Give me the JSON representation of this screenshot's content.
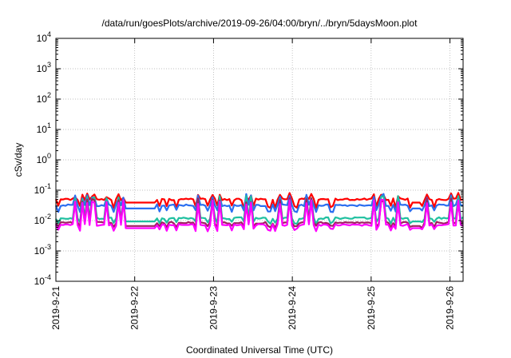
{
  "chart_data": {
    "type": "line",
    "title": "/data/run/goesPlots/archive/2019-09-26/04:00/bryn/../bryn/5daysMoon.plot",
    "xlabel": "Coordinated Universal Time (UTC)",
    "ylabel": "cSv/day",
    "y_scale": "log",
    "ylim": [
      0.0001,
      10000
    ],
    "y_ticks": [
      {
        "value": 0.0001,
        "base": "10",
        "exp": "-4"
      },
      {
        "value": 0.001,
        "base": "10",
        "exp": "-3"
      },
      {
        "value": 0.01,
        "base": "10",
        "exp": "-2"
      },
      {
        "value": 0.1,
        "base": "10",
        "exp": "-1"
      },
      {
        "value": 1,
        "base": "10",
        "exp": "0"
      },
      {
        "value": 10,
        "base": "10",
        "exp": "1"
      },
      {
        "value": 100,
        "base": "10",
        "exp": "2"
      },
      {
        "value": 1000,
        "base": "10",
        "exp": "3"
      },
      {
        "value": 10000,
        "base": "10",
        "exp": "4"
      }
    ],
    "xlim": [
      "2019-09-21",
      "2019-09-26T04:00"
    ],
    "x_ticks": [
      "2019-9-21",
      "2019-9-22",
      "2019-9-23",
      "2019-9-24",
      "2019-9-25",
      "2019-9-26"
    ],
    "grid": true,
    "series": [
      {
        "color": "#ff0000",
        "base": 0.05,
        "spike": 0.075,
        "dip": 0.03
      },
      {
        "color": "#2b6ef0",
        "base": 0.032,
        "spike": 0.07,
        "dip": 0.022
      },
      {
        "color": "#20c0a0",
        "base": 0.012,
        "spike": 0.06,
        "dip": 0.009
      },
      {
        "color": "#a02060",
        "base": 0.0085,
        "spike": 0.05,
        "dip": 0.0065
      },
      {
        "color": "#ff00ff",
        "base": 0.0072,
        "spike": 0.045,
        "dip": 0.0052
      }
    ]
  }
}
